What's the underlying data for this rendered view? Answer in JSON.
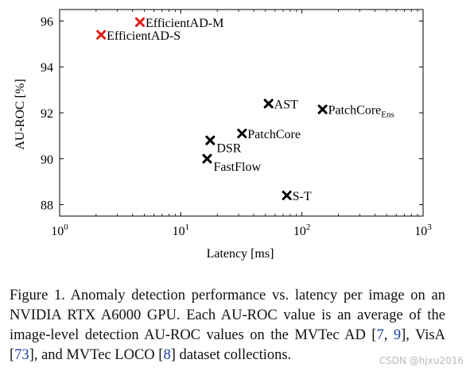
{
  "chart_data": {
    "type": "scatter",
    "xlabel": "Latency [ms]",
    "ylabel": "AU-ROC [%]",
    "xscale": "log",
    "xlim": [
      1,
      1000
    ],
    "ylim": [
      87.5,
      96.5
    ],
    "xticks": [
      {
        "value": 1,
        "base": "10",
        "exp": "0"
      },
      {
        "value": 10,
        "base": "10",
        "exp": "1"
      },
      {
        "value": 100,
        "base": "10",
        "exp": "2"
      },
      {
        "value": 1000,
        "base": "10",
        "exp": "3"
      }
    ],
    "yticks": [
      88,
      90,
      92,
      94,
      96
    ],
    "grid": false,
    "points": [
      {
        "label": "EfficientAD-M",
        "x": 4.6,
        "y": 95.95,
        "color": "#e0201b",
        "label_pos": "right"
      },
      {
        "label": "EfficientAD-S",
        "x": 2.2,
        "y": 95.4,
        "color": "#e0201b",
        "label_pos": "right"
      },
      {
        "label": "AST",
        "x": 53,
        "y": 92.4,
        "color": "#000000",
        "label_pos": "right"
      },
      {
        "label": "PatchCore",
        "label_sub": "Ens",
        "x": 148,
        "y": 92.15,
        "color": "#000000",
        "label_pos": "right"
      },
      {
        "label": "PatchCore",
        "x": 32,
        "y": 91.1,
        "color": "#000000",
        "label_pos": "right"
      },
      {
        "label": "DSR",
        "x": 17.5,
        "y": 90.8,
        "color": "#000000",
        "label_pos": "below-right"
      },
      {
        "label": "FastFlow",
        "x": 16.5,
        "y": 90.0,
        "color": "#000000",
        "label_pos": "below-right"
      },
      {
        "label": "S-T",
        "x": 75,
        "y": 88.4,
        "color": "#000000",
        "label_pos": "right"
      }
    ]
  },
  "caption": {
    "lead": "Figure 1. Anomaly detection performance vs. latency per image on an NVIDIA RTX A6000 GPU. Each AU-ROC value is an average of the image-level detection AU-ROC values on the MVTec AD [",
    "c1": "7",
    "sep1": ", ",
    "c2": "9",
    "mid1": "], VisA [",
    "c3": "73",
    "mid2": "], and MVTec LOCO [",
    "c4": "8",
    "tail": "] dataset collections."
  },
  "watermark": "CSDN @hjxu2016"
}
